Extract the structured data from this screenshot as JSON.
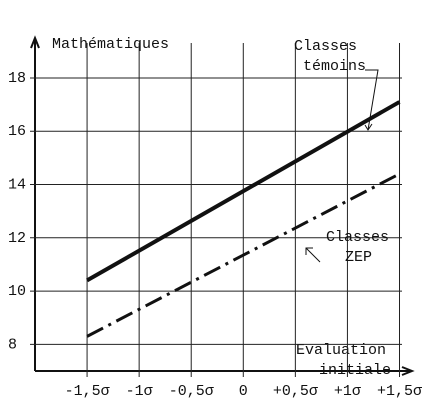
{
  "chart_data": {
    "type": "line",
    "ylabel": "Mathématiques",
    "xlabel": "Evaluation initiale",
    "x": [
      -1.5,
      1.5
    ],
    "series": [
      {
        "name": "Classes témoins",
        "color": "#111111",
        "style": "solid",
        "values": [
          10.4,
          17.1
        ]
      },
      {
        "name": "Classes ZEP",
        "color": "#111111",
        "style": "dashdot",
        "values": [
          8.3,
          14.4
        ]
      }
    ],
    "xlim": [
      -2,
      1.62
    ],
    "xticks": [
      {
        "value": -1.5,
        "label": "-1,5σ"
      },
      {
        "value": -1,
        "label": "-1σ"
      },
      {
        "value": -0.5,
        "label": "-0,5σ"
      },
      {
        "value": 0,
        "label": "0"
      },
      {
        "value": 0.5,
        "label": "+0,5σ"
      },
      {
        "value": 1,
        "label": "+1σ"
      },
      {
        "value": 1.5,
        "label": "+1,5σ"
      }
    ],
    "ylim": [
      7,
      19.5
    ],
    "yticks": [
      8,
      10,
      12,
      14,
      16,
      18
    ],
    "grid": true
  }
}
